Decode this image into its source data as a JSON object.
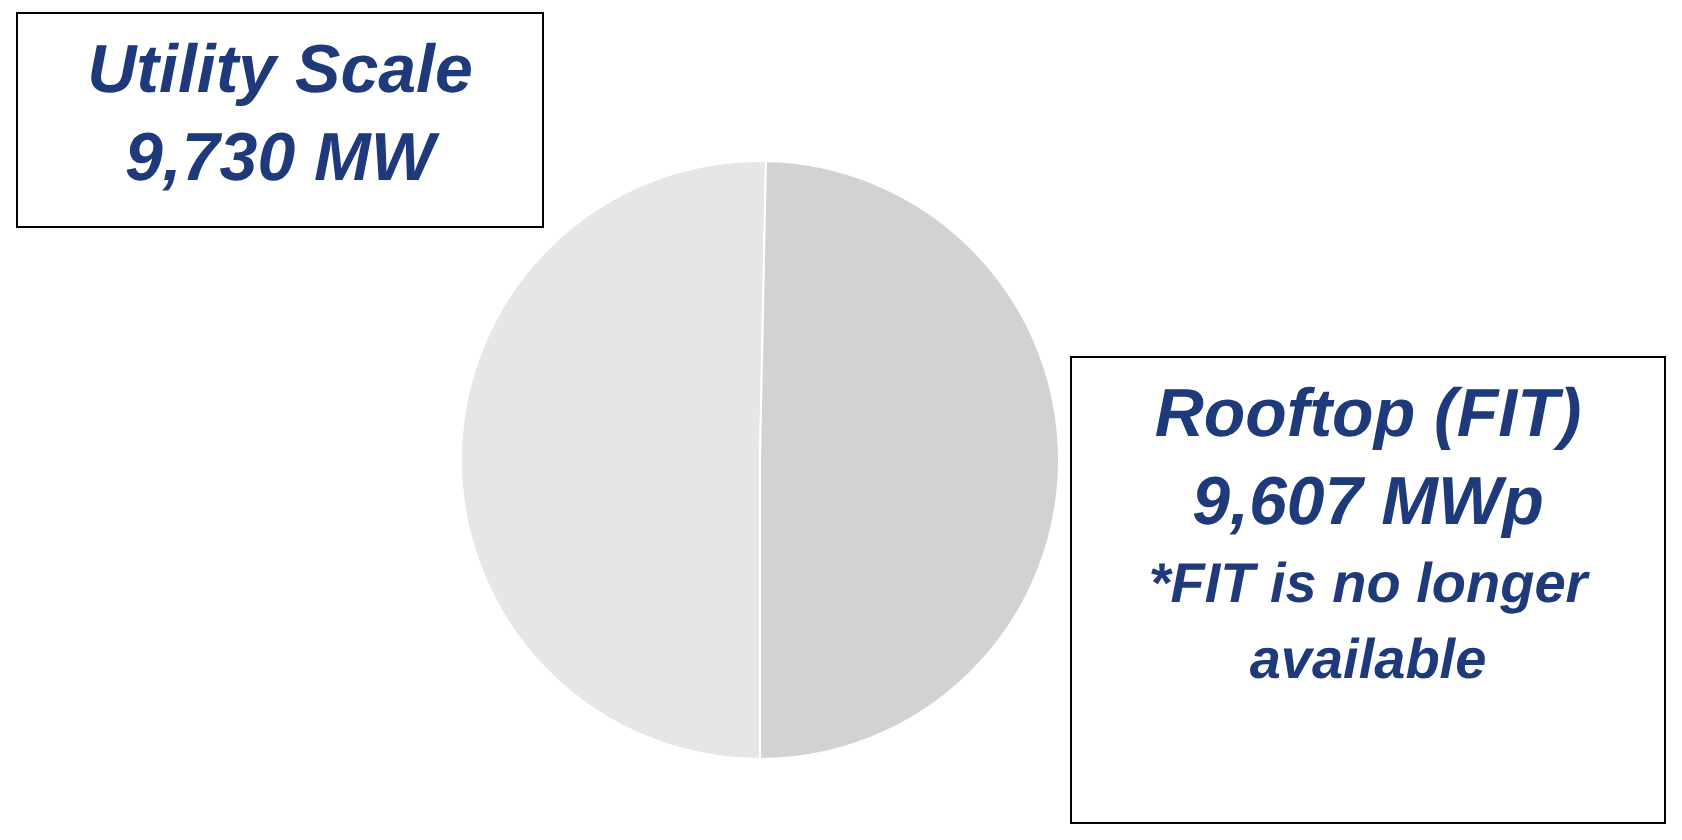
{
  "chart_data": {
    "type": "pie",
    "categories": [
      "Utility Scale",
      "Rooftop (FIT)"
    ],
    "values": [
      9730,
      9607
    ],
    "colors": [
      "#e6e6e6",
      "#d2d2d2"
    ],
    "value_labels": [
      "9,730 MW",
      "9,607 MWp"
    ],
    "annotations": [
      "*FIT is no longer available"
    ],
    "legend": false
  }
}
